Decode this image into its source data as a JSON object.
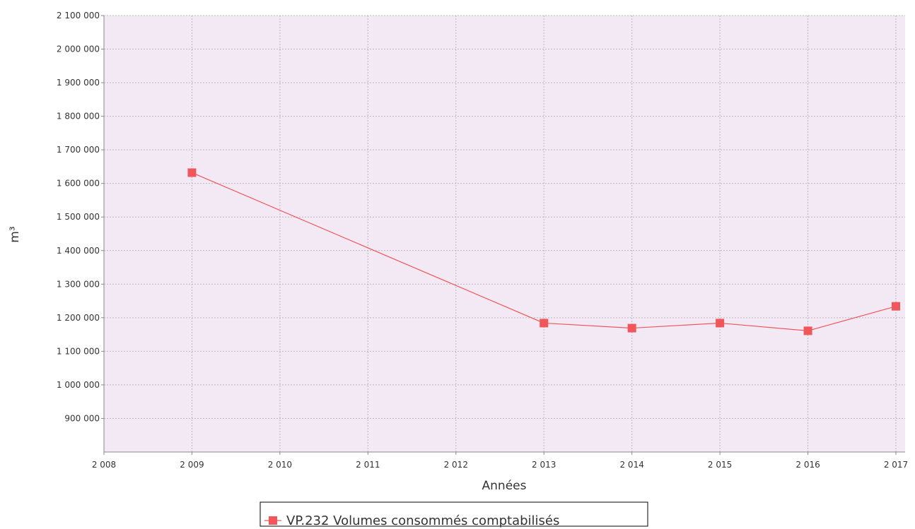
{
  "chart_data": {
    "type": "line",
    "title": "",
    "xlabel": "Années",
    "ylabel": "m³",
    "xlim": [
      2008,
      2017
    ],
    "ylim": [
      800000,
      2100000
    ],
    "x_ticks": [
      2008,
      2009,
      2010,
      2011,
      2012,
      2013,
      2014,
      2015,
      2016,
      2017
    ],
    "x_tick_labels": [
      "2 008",
      "2 009",
      "2 010",
      "2 011",
      "2 012",
      "2 013",
      "2 014",
      "2 015",
      "2 016",
      "2 017"
    ],
    "y_ticks": [
      900000,
      1000000,
      1100000,
      1200000,
      1300000,
      1400000,
      1500000,
      1600000,
      1700000,
      1800000,
      1900000,
      2000000,
      2100000
    ],
    "y_tick_labels": [
      "900 000",
      "1 000 000",
      "1 100 000",
      "1 200 000",
      "1 300 000",
      "1 400 000",
      "1 500 000",
      "1 600 000",
      "1 700 000",
      "1 800 000",
      "1 900 000",
      "2 000 000",
      "2 100 000"
    ],
    "grid": true,
    "legend_position": "bottom-center",
    "plot_background": "#f2e9f5",
    "series": [
      {
        "name": "VP.232 Volumes consommés comptabilisés",
        "color": "#f0565a",
        "marker": "square",
        "x": [
          2009,
          2013,
          2014,
          2015,
          2016,
          2017
        ],
        "values": [
          1632000,
          1184000,
          1169000,
          1184000,
          1161000,
          1234000
        ]
      }
    ]
  }
}
